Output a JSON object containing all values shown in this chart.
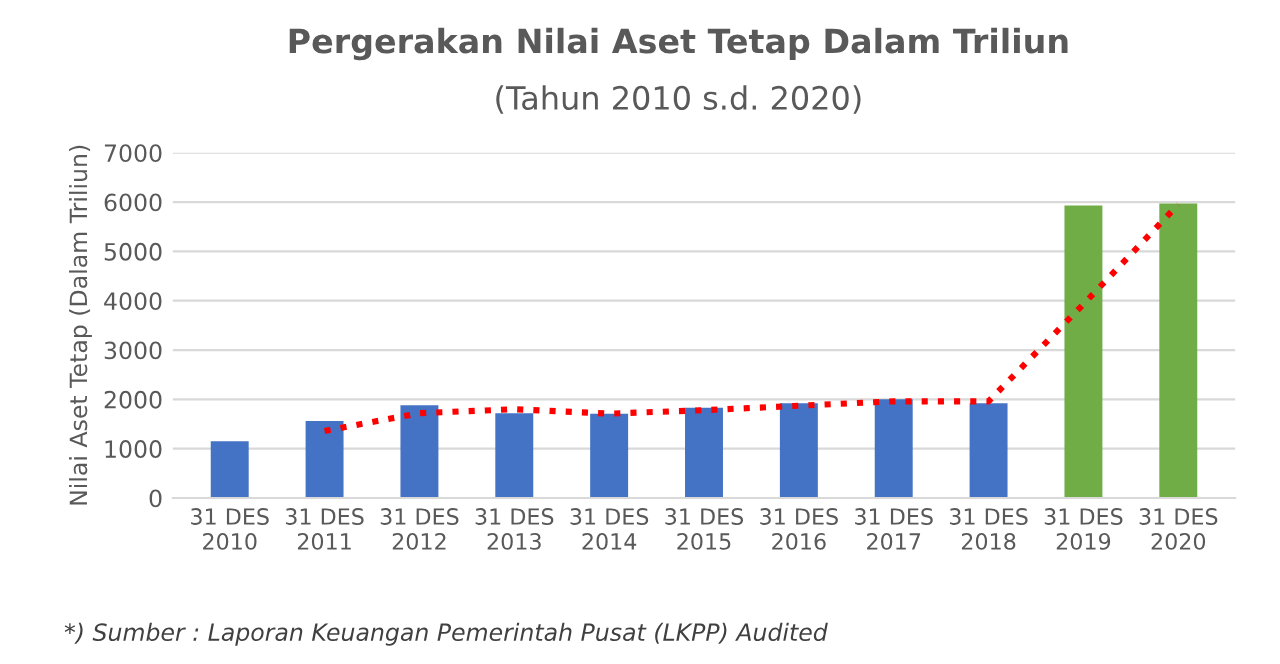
{
  "chart_data": {
    "type": "bar",
    "title": "Pergerakan Nilai Aset Tetap Dalam Triliun",
    "subtitle": "(Tahun 2010 s.d. 2020)",
    "ylabel": "Nilai Aset Tetap (Dalam Triliun)",
    "categories": [
      "31 DES\n2010",
      "31 DES\n2011",
      "31 DES\n2012",
      "31 DES\n2013",
      "31 DES\n2014",
      "31 DES\n2015",
      "31 DES\n2016",
      "31 DES\n2017",
      "31 DES\n2018",
      "31 DES\n2019",
      "31 DES\n2020"
    ],
    "series": [
      {
        "values": [
          1150,
          1560,
          1880,
          1720,
          1710,
          1830,
          1920,
          2000,
          1920,
          5930,
          5970
        ],
        "colors": [
          "#4472c4",
          "#4472c4",
          "#4472c4",
          "#4472c4",
          "#4472c4",
          "#4472c4",
          "#4472c4",
          "#4472c4",
          "#4472c4",
          "#70ad47",
          "#70ad47"
        ]
      },
      {
        "type": "line",
        "color": "#ff0000",
        "line_style": "dotted",
        "values": [
          null,
          1360,
          1720,
          1800,
          1710,
          1780,
          1870,
          1960,
          1960,
          3930,
          5950
        ]
      }
    ],
    "ylim": [
      0,
      7000
    ],
    "yticks": [
      0,
      1000,
      2000,
      3000,
      4000,
      5000,
      6000,
      7000
    ],
    "grid": "y",
    "legend": false,
    "annotations": [
      "*) Sumber : Laporan Keuangan Pemerintah Pusat (LKPP) Audited"
    ]
  }
}
